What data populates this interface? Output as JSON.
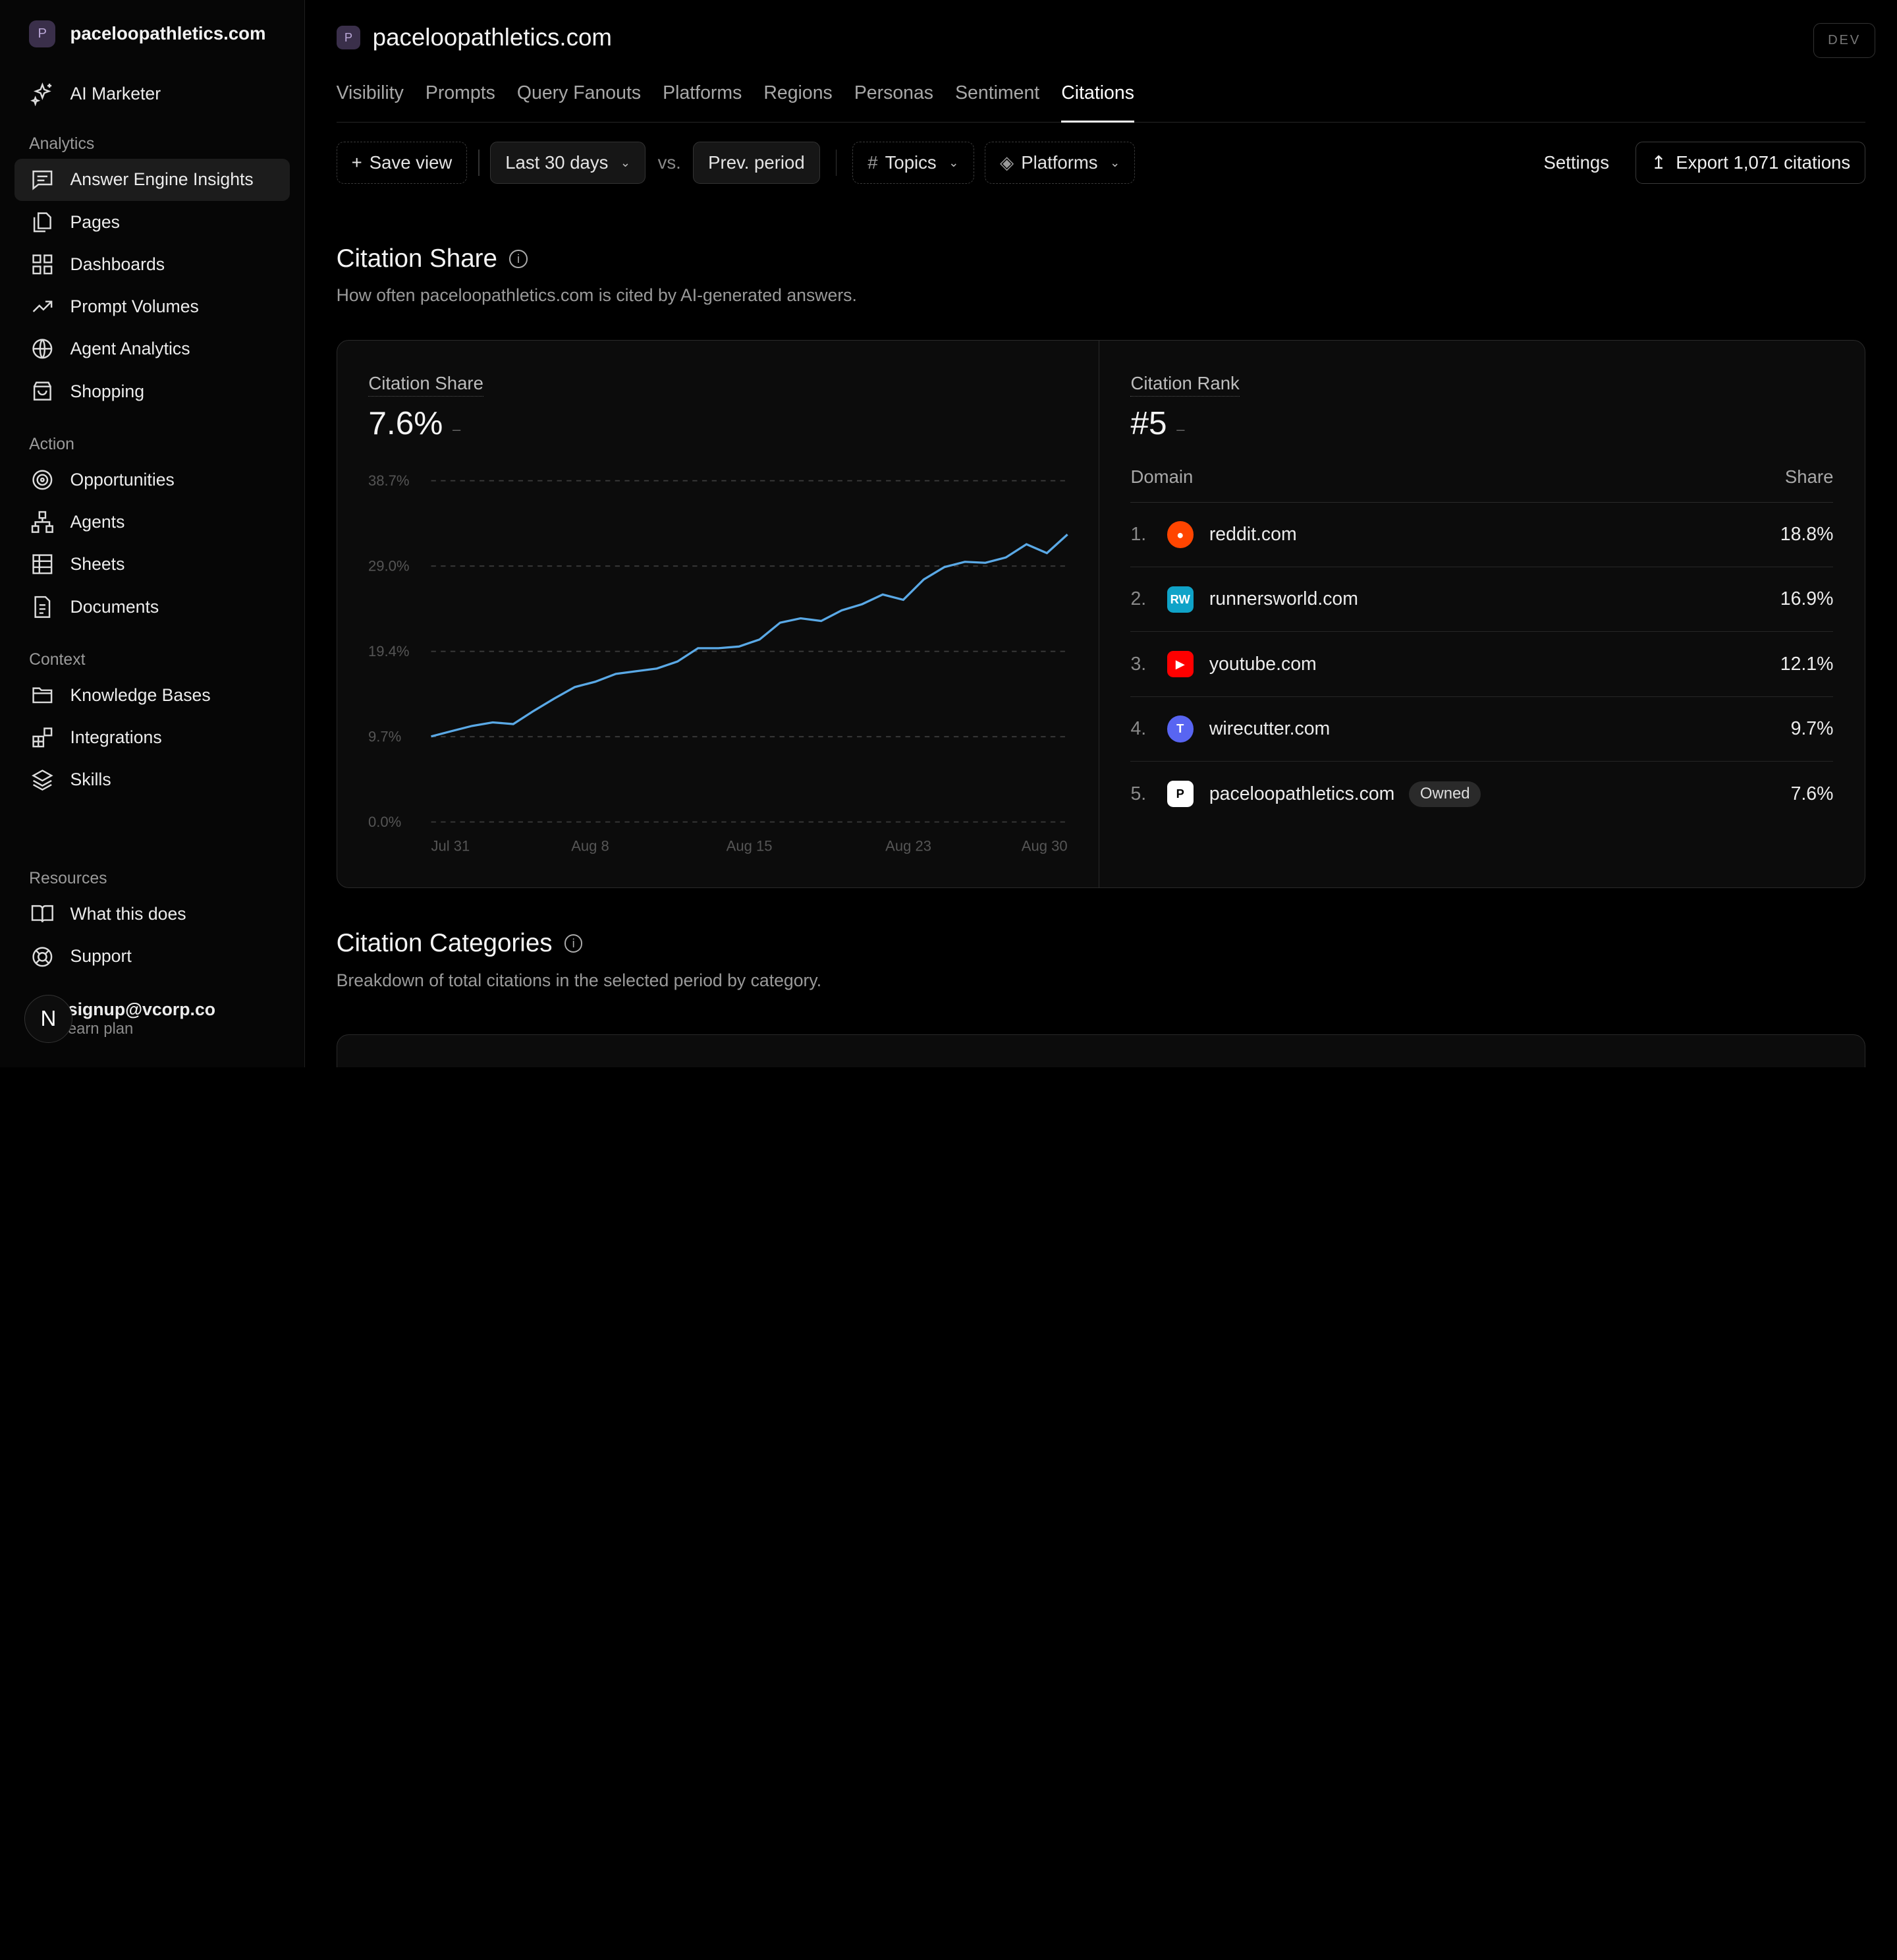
{
  "workspace": {
    "badge": "P",
    "name": "paceloopathletics.com"
  },
  "sidebar": {
    "top_item": {
      "label": "AI Marketer",
      "icon": "sparkles-icon"
    },
    "sections": [
      {
        "label": "Analytics",
        "items": [
          {
            "label": "Answer Engine Insights",
            "icon": "message-square-icon",
            "active": true
          },
          {
            "label": "Pages",
            "icon": "pages-icon"
          },
          {
            "label": "Dashboards",
            "icon": "grid-icon"
          },
          {
            "label": "Prompt Volumes",
            "icon": "trending-up-icon"
          },
          {
            "label": "Agent Analytics",
            "icon": "globe-icon"
          },
          {
            "label": "Shopping",
            "icon": "shopping-bag-icon"
          }
        ]
      },
      {
        "label": "Action",
        "items": [
          {
            "label": "Opportunities",
            "icon": "target-icon"
          },
          {
            "label": "Agents",
            "icon": "network-icon"
          },
          {
            "label": "Sheets",
            "icon": "table-icon"
          },
          {
            "label": "Documents",
            "icon": "document-icon"
          }
        ]
      },
      {
        "label": "Context",
        "items": [
          {
            "label": "Knowledge Bases",
            "icon": "folder-icon"
          },
          {
            "label": "Integrations",
            "icon": "blocks-icon"
          },
          {
            "label": "Skills",
            "icon": "layers-icon"
          }
        ]
      }
    ],
    "resources": {
      "label": "Resources",
      "items": [
        {
          "label": "What this does",
          "icon": "book-icon"
        },
        {
          "label": "Support",
          "icon": "lifebuoy-icon"
        }
      ]
    },
    "user": {
      "avatar": "N",
      "email": "signup@vcorp.co",
      "plan": "earn plan"
    }
  },
  "header": {
    "badge": "P",
    "title": "paceloopathletics.com",
    "env": "DEV"
  },
  "tabs": [
    "Visibility",
    "Prompts",
    "Query Fanouts",
    "Platforms",
    "Regions",
    "Personas",
    "Sentiment",
    "Citations"
  ],
  "active_tab": "Citations",
  "toolbar": {
    "save_view": "Save view",
    "range": "Last 30 days",
    "vs": "vs.",
    "compare": "Prev. period",
    "topics": "Topics",
    "platforms": "Platforms",
    "settings": "Settings",
    "export": "Export 1,071 citations"
  },
  "citation_share": {
    "title": "Citation Share",
    "subtitle": "How often paceloopathletics.com is cited by AI-generated answers.",
    "metric_label": "Citation Share",
    "metric_value": "7.6%",
    "metric_delta": "–"
  },
  "citation_rank": {
    "metric_label": "Citation Rank",
    "metric_value": "#5",
    "metric_delta": "–",
    "col_domain": "Domain",
    "col_share": "Share",
    "rows": [
      {
        "rank": "1.",
        "domain": "reddit.com",
        "share": "18.8%",
        "color": "#ff4500",
        "glyph": "●"
      },
      {
        "rank": "2.",
        "domain": "runnersworld.com",
        "share": "16.9%",
        "color": "#0fa3c8",
        "glyph": "RW"
      },
      {
        "rank": "3.",
        "domain": "youtube.com",
        "share": "12.1%",
        "color": "#ff0000",
        "glyph": "▶"
      },
      {
        "rank": "4.",
        "domain": "wirecutter.com",
        "share": "9.7%",
        "color": "#5865f2",
        "glyph": "T"
      },
      {
        "rank": "5.",
        "domain": "paceloopathletics.com",
        "share": "7.6%",
        "color": "#ffffff",
        "glyph": "P",
        "owned": "Owned"
      }
    ]
  },
  "citation_categories": {
    "title": "Citation Categories",
    "subtitle": "Breakdown of total citations in the selected period by category."
  },
  "chart_data": {
    "type": "line",
    "ylim": [
      0,
      38.7
    ],
    "y_ticks": [
      "38.7%",
      "29.0%",
      "19.4%",
      "9.7%",
      "0.0%"
    ],
    "x_ticks": [
      "Jul 31",
      "Aug 8",
      "Aug 15",
      "Aug 23",
      "Aug 30"
    ],
    "series": [
      {
        "color": "#5aa9e6",
        "values": [
          9.7,
          10.3,
          10.9,
          11.3,
          11.1,
          12.6,
          14.0,
          15.3,
          15.9,
          16.8,
          17.1,
          17.4,
          18.2,
          19.7,
          19.7,
          19.9,
          20.7,
          22.6,
          23.1,
          22.8,
          24.0,
          24.7,
          25.8,
          25.2,
          27.5,
          28.9,
          29.5,
          29.4,
          30.0,
          31.5,
          30.5,
          32.6
        ]
      }
    ]
  }
}
